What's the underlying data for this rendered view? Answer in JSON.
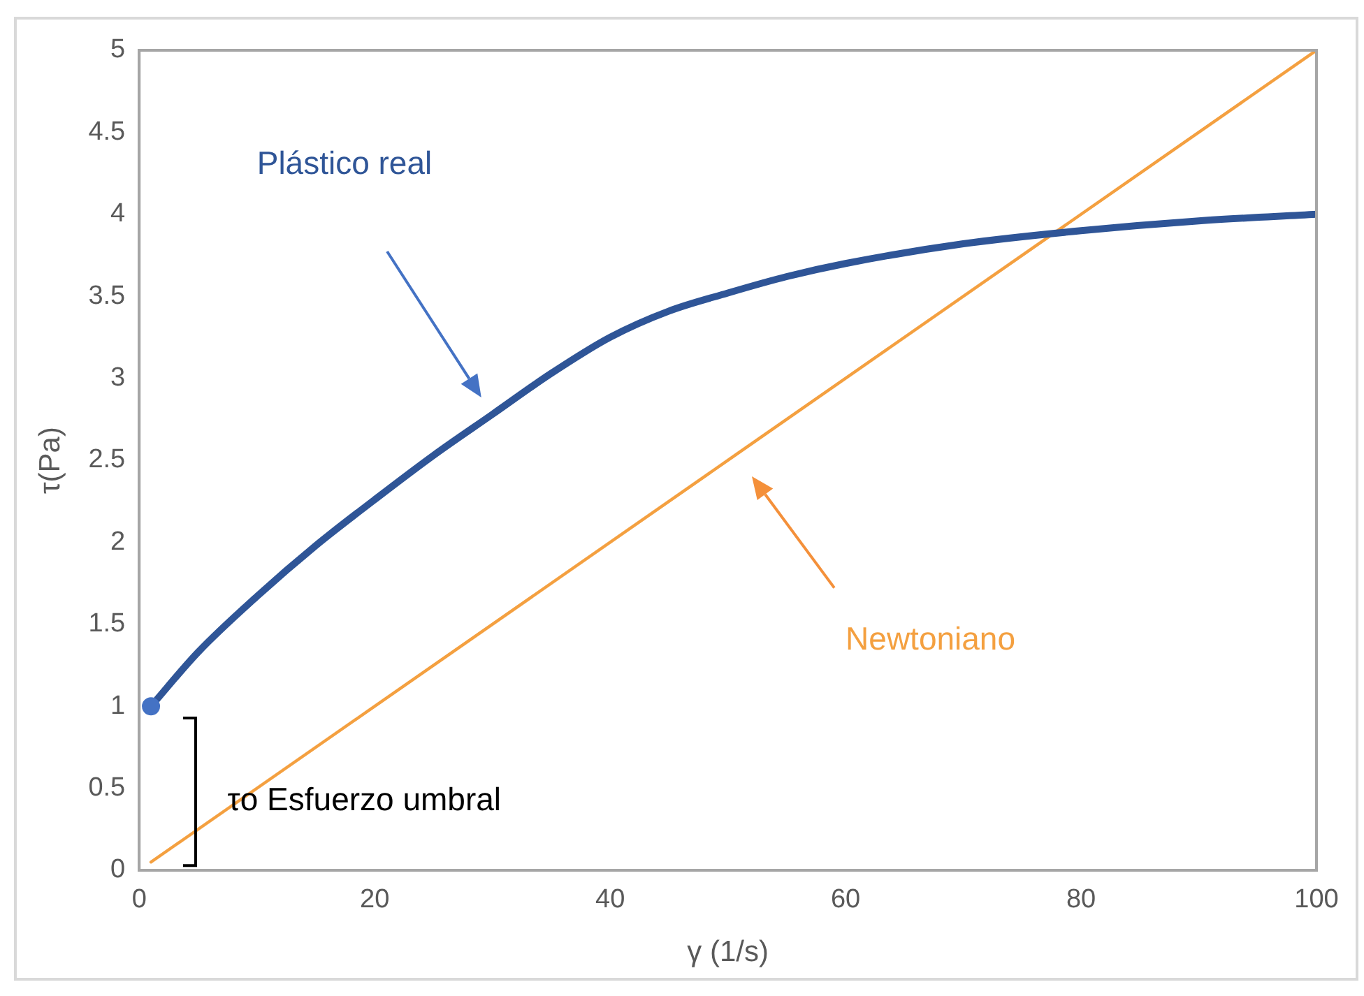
{
  "chart_data": {
    "type": "line",
    "xlabel": "γ (1/s)",
    "ylabel": "τ(Pa)",
    "xlim": [
      0,
      100
    ],
    "ylim": [
      0,
      5
    ],
    "xticks": [
      0,
      20,
      40,
      60,
      80,
      100
    ],
    "yticks": [
      0,
      0.5,
      1,
      1.5,
      2,
      2.5,
      3,
      3.5,
      4,
      4.5,
      5
    ],
    "grid": false,
    "legend": false,
    "marker": "none",
    "line_style": "solid",
    "series": [
      {
        "name": "Plástico real",
        "color": "#2f5597",
        "x": [
          1,
          5,
          10,
          15,
          20,
          25,
          30,
          35,
          40,
          45,
          50,
          55,
          60,
          70,
          80,
          90,
          100
        ],
        "values": [
          1,
          1.33,
          1.67,
          1.98,
          2.26,
          2.53,
          2.78,
          3.03,
          3.25,
          3.41,
          3.52,
          3.62,
          3.7,
          3.82,
          3.9,
          3.96,
          4.0
        ]
      },
      {
        "name": "Newtoniano",
        "color": "#f4a040",
        "x": [
          1,
          100
        ],
        "values": [
          0.05,
          5
        ]
      },
      {
        "type": "scatter",
        "color": "#4472c4",
        "marker": "circle",
        "x": [
          1
        ],
        "values": [
          1
        ]
      }
    ],
    "annotations": [
      "τo Esfuerzo umbral"
    ]
  }
}
